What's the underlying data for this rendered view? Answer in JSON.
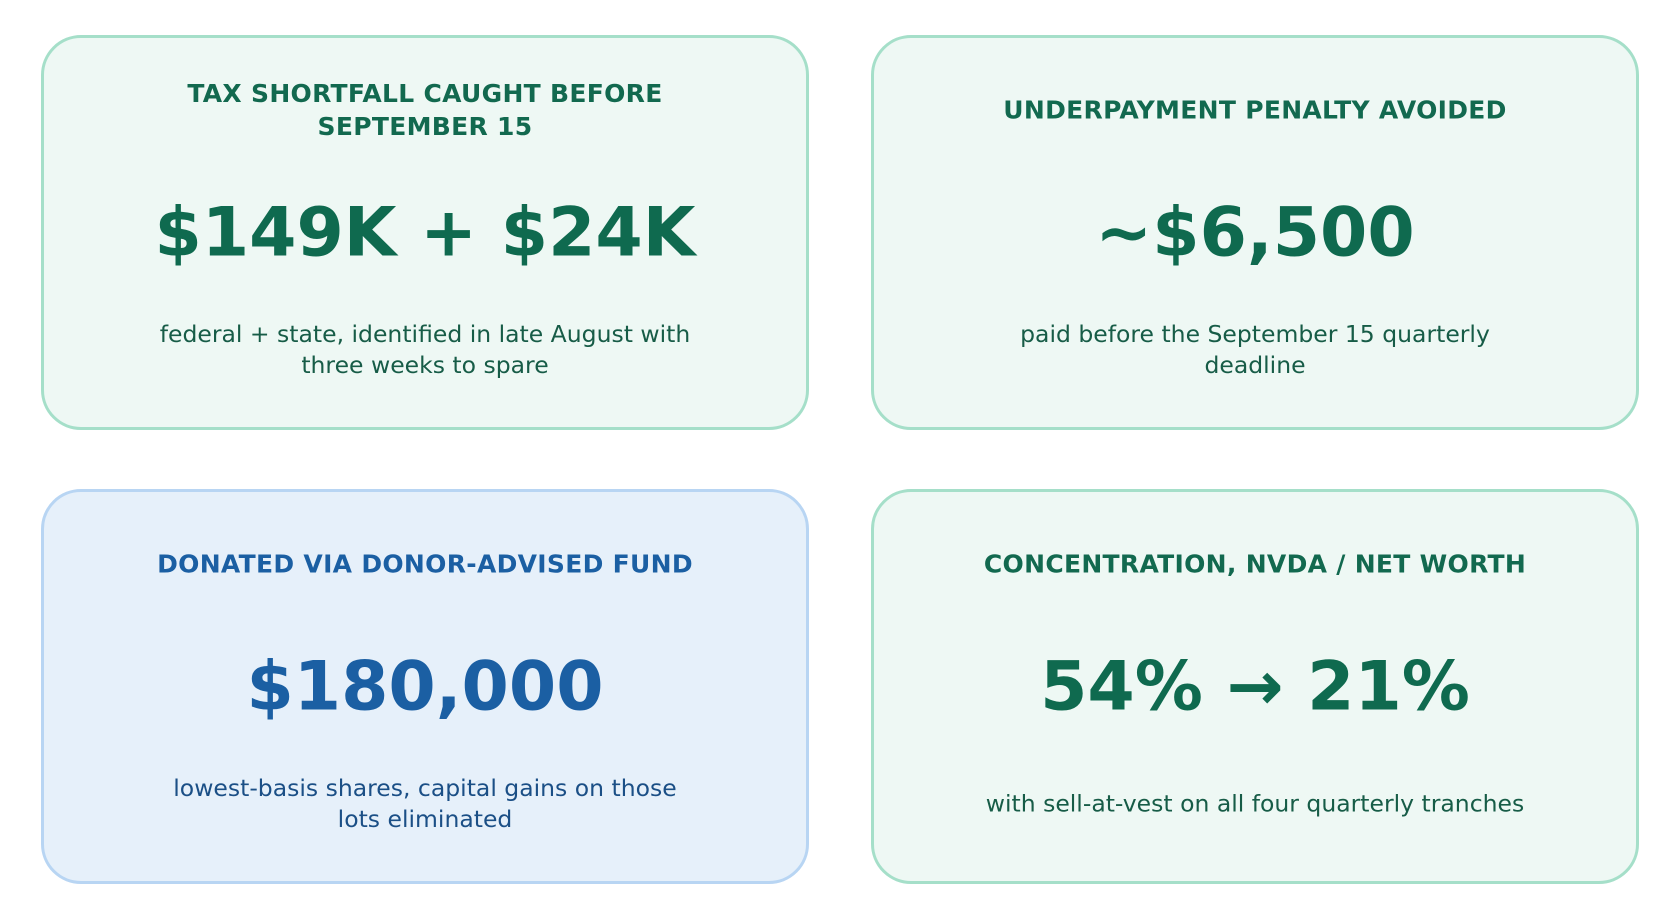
{
  "cards": [
    {
      "title": "TAX SHORTFALL CAUGHT BEFORE SEPTEMBER 15",
      "value": "$149K + $24K",
      "description": "federal + state, identified in late August with three weeks to spare"
    },
    {
      "title": "UNDERPAYMENT PENALTY AVOIDED",
      "value": "~$6,500",
      "description": "paid before the September 15 quarterly deadline"
    },
    {
      "title": "DONATED VIA DONOR-ADVISED FUND",
      "value": "$180,000",
      "description": "lowest-basis shares, capital gains on those lots eliminated"
    },
    {
      "title": "CONCENTRATION, NVDA / NET WORTH",
      "value": "54% → 21%",
      "description": "with sell-at-vest on all four quarterly tranches"
    }
  ]
}
